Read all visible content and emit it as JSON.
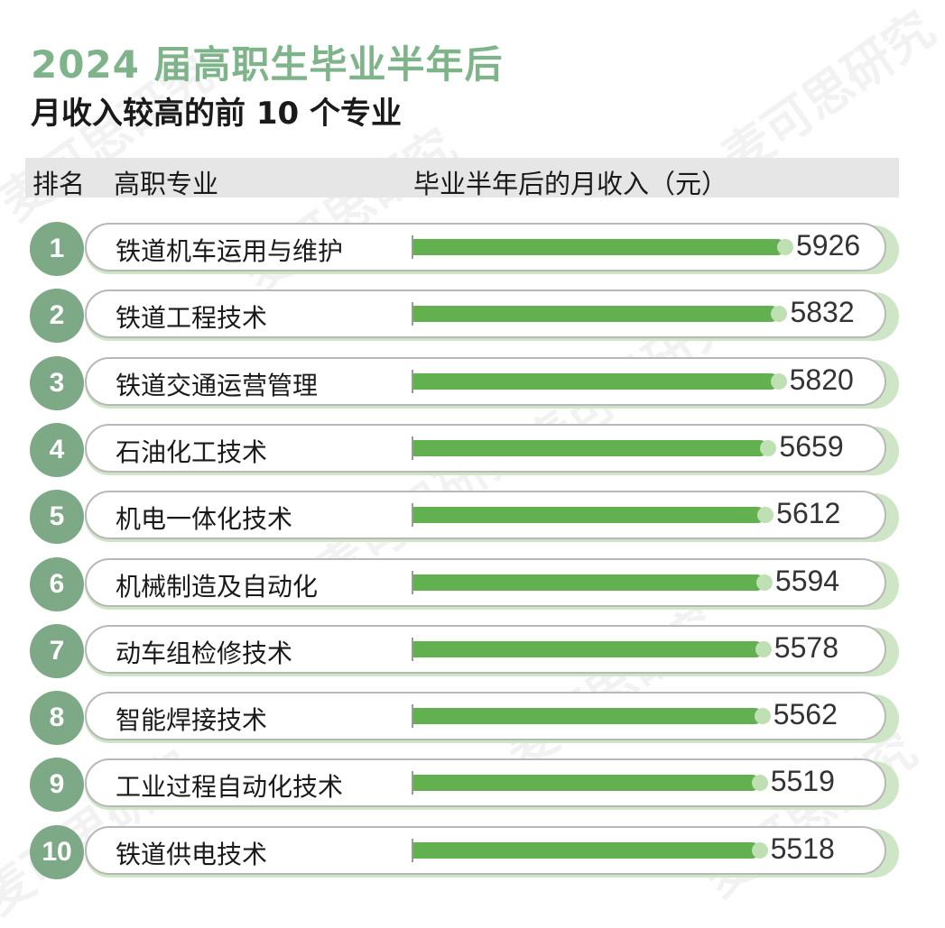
{
  "title_line1": "2024 届高职生毕业半年后",
  "title_line2": "月收入较高的前 10 个专业",
  "header": {
    "rank": "排名",
    "major": "高职专业",
    "income": "毕业半年后的月收入（元）"
  },
  "watermark": "麦可思研究",
  "colors": {
    "title_green": "#7fb48b",
    "bar_green": "#62b04f",
    "rank_circle": "#7ea986"
  },
  "chart_data": {
    "type": "bar",
    "orientation": "horizontal",
    "title": "2024 届高职生毕业半年后月收入较高的前 10 个专业",
    "xlabel": "毕业半年后的月收入（元）",
    "ylabel": "高职专业",
    "ranks": [
      "1",
      "2",
      "3",
      "4",
      "5",
      "6",
      "7",
      "8",
      "9",
      "10"
    ],
    "categories": [
      "铁道机车运用与维护",
      "铁道工程技术",
      "铁道交通运营管理",
      "石油化工技术",
      "机电一体化技术",
      "机械制造及自动化",
      "动车组检修技术",
      "智能焊接技术",
      "工业过程自动化技术",
      "铁道供电技术"
    ],
    "values": [
      5926,
      5832,
      5820,
      5659,
      5612,
      5594,
      5578,
      5562,
      5519,
      5518
    ],
    "value_labels": [
      "5926",
      "5832",
      "5820",
      "5659",
      "5612",
      "5594",
      "5578",
      "5562",
      "5519",
      "5518"
    ]
  }
}
